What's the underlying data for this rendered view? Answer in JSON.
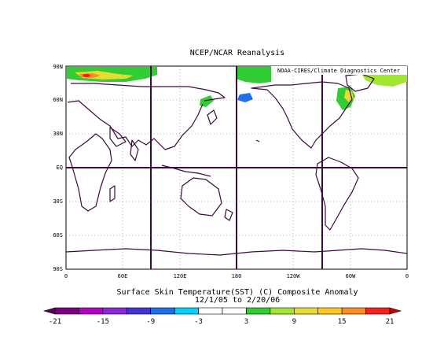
{
  "header": {
    "title": "NCEP/NCAR Reanalysis"
  },
  "map": {
    "credit": "NOAA-CIRES/Climate Diagnostics Center",
    "lat_labels": [
      "90N",
      "60N",
      "30N",
      "EQ",
      "30S",
      "60S",
      "90S"
    ],
    "lon_labels": [
      "0",
      "60E",
      "120E",
      "180",
      "120W",
      "60W",
      "0"
    ],
    "land_color": "#ffffff",
    "coast_color": "#3c0a3c",
    "grid_color": "#3c0a3c"
  },
  "caption": {
    "line1": "Surface Skin Temperature(SST) (C) Composite Anomaly",
    "line2": "12/1/05  to 2/20/06"
  },
  "colorbar": {
    "labels": [
      "-21",
      "-15",
      "-9",
      "-3",
      "3",
      "9",
      "15",
      "21"
    ],
    "colors": [
      "#7a0080",
      "#b400c8",
      "#8c28dc",
      "#4632dc",
      "#1e6ef0",
      "#00d2ff",
      "#ffffff",
      "#ffffff",
      "#32cd32",
      "#a0e632",
      "#e6dc32",
      "#ffc81e",
      "#ff8c1e",
      "#ff1e1e"
    ]
  }
}
